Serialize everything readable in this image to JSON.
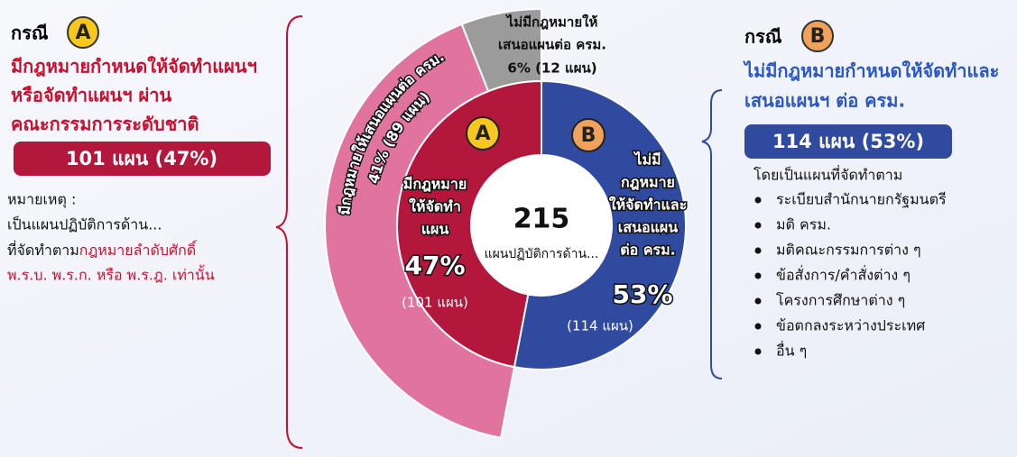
{
  "case_a": {
    "heading": "กรณี",
    "letter": "A",
    "lines": [
      "มีกฎหมายกำหนดให้จัดทำแผนฯ",
      "หรือจัดทำแผนฯ ผ่าน",
      "คณะกรรมการระดับชาติ"
    ],
    "badge": "101 แผน (47%)",
    "note_title": "หมายเหตุ :",
    "note_line1": "เป็นแผนปฏิบัติการด้าน...",
    "note_line2_plain": "ที่จัดทำตาม",
    "note_line2_red": "กฎหมายลำดับศักดิ์",
    "note_line3": "พ.ร.บ.  พ.ร.ก.  หรือ พ.ร.ฎ. เท่านั้น"
  },
  "case_b": {
    "heading": "กรณี",
    "letter": "B",
    "lines": [
      "ไม่มีกฎหมายกำหนดให้จัดทำและ",
      "เสนอแผนฯ ต่อ ครม."
    ],
    "badge": "114 แผน (53%)",
    "list_title": "โดยเป็นแผนที่จัดทำตาม",
    "items": [
      "ระเบียบสำนักนายกรัฐมนตรี",
      "มติ ครม.",
      "มติคณะกรรมการต่าง ๆ",
      "ข้อสั่งการ/คำสั่งต่าง ๆ",
      "โครงการศึกษาต่าง ๆ",
      "ข้อตกลงระหว่างประเทศ",
      "อื่น ๆ"
    ]
  },
  "chart_data": {
    "type": "donut",
    "center_value": "215",
    "center_label": "แผนปฏิบัติการด้าน...",
    "inner": {
      "categories": [
        "A",
        "B"
      ],
      "labels": [
        [
          "มีกฎหมาย",
          "ให้จัดทำ",
          "แผน"
        ],
        [
          "ไม่มี",
          "กฎหมาย",
          "ให้จัดทำและ",
          "เสนอแผน",
          "ต่อ ครม."
        ]
      ],
      "values": [
        47,
        53
      ],
      "value_labels": [
        "47%",
        "53%"
      ],
      "counts": [
        "(101 แผน)",
        "(114 แผน)"
      ],
      "colors": [
        "#b3173c",
        "#2f4a9e"
      ]
    },
    "outer": {
      "labels": [
        [
          "ไม่มีกฎหมายให้",
          "เสนอแผนต่อ ครม."
        ],
        [
          "มีกฎหมายให้เสนอแผนต่อ ครม."
        ]
      ],
      "values": [
        6,
        41
      ],
      "value_labels": [
        "6% (12 แผน)",
        "41% (89 แผน)"
      ],
      "colors": [
        "#9b9b9b",
        "#e0749f"
      ]
    }
  }
}
